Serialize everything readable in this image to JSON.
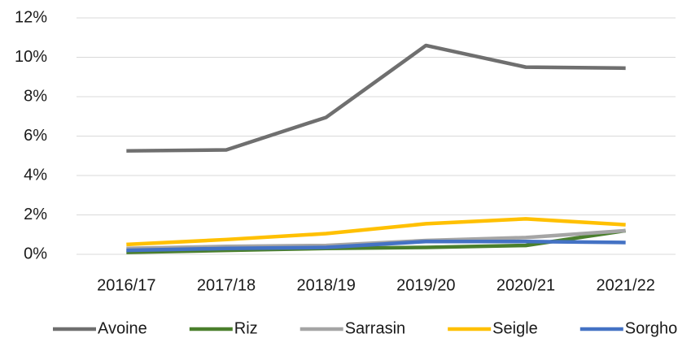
{
  "chart_data": {
    "type": "line",
    "categories": [
      "2016/17",
      "2017/18",
      "2018/19",
      "2019/20",
      "2020/21",
      "2021/22"
    ],
    "series": [
      {
        "name": "Avoine",
        "color": "#6f6f6f",
        "values": [
          5.25,
          5.3,
          6.95,
          10.6,
          9.5,
          9.45
        ]
      },
      {
        "name": "Riz",
        "color": "#4a7f2c",
        "values": [
          0.1,
          0.2,
          0.3,
          0.35,
          0.45,
          1.2
        ]
      },
      {
        "name": "Sarrasin",
        "color": "#a5a5a5",
        "values": [
          0.3,
          0.4,
          0.45,
          0.7,
          0.85,
          1.2
        ]
      },
      {
        "name": "Seigle",
        "color": "#ffc000",
        "values": [
          0.5,
          0.75,
          1.05,
          1.55,
          1.8,
          1.5
        ]
      },
      {
        "name": "Sorgho",
        "color": "#4472c4",
        "values": [
          0.2,
          0.3,
          0.35,
          0.65,
          0.65,
          0.6
        ]
      }
    ],
    "ylim": [
      0,
      12
    ],
    "yticks": [
      {
        "value": 0,
        "label": "0%"
      },
      {
        "value": 2,
        "label": "2%"
      },
      {
        "value": 4,
        "label": "4%"
      },
      {
        "value": 6,
        "label": "6%"
      },
      {
        "value": 8,
        "label": "8%"
      },
      {
        "value": 10,
        "label": "10%"
      },
      {
        "value": 12,
        "label": "12%"
      }
    ],
    "grid": true,
    "legend": "bottom"
  }
}
